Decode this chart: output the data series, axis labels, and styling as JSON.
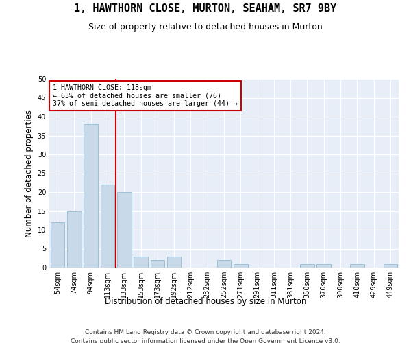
{
  "title": "1, HAWTHORN CLOSE, MURTON, SEAHAM, SR7 9BY",
  "subtitle": "Size of property relative to detached houses in Murton",
  "xlabel": "Distribution of detached houses by size in Murton",
  "ylabel": "Number of detached properties",
  "categories": [
    "54sqm",
    "74sqm",
    "94sqm",
    "113sqm",
    "133sqm",
    "153sqm",
    "173sqm",
    "192sqm",
    "212sqm",
    "232sqm",
    "252sqm",
    "271sqm",
    "291sqm",
    "311sqm",
    "331sqm",
    "350sqm",
    "370sqm",
    "390sqm",
    "410sqm",
    "429sqm",
    "449sqm"
  ],
  "values": [
    12,
    15,
    38,
    22,
    20,
    3,
    2,
    3,
    0,
    0,
    2,
    1,
    0,
    0,
    0,
    1,
    1,
    0,
    1,
    0,
    1
  ],
  "bar_color": "#c8daea",
  "bar_edgecolor": "#92bcd4",
  "property_label": "1 HAWTHORN CLOSE: 118sqm",
  "annotation_line1": "← 63% of detached houses are smaller (76)",
  "annotation_line2": "37% of semi-detached houses are larger (44) →",
  "vline_color": "#cc0000",
  "vline_position": 3.5,
  "annotation_box_facecolor": "#ffffff",
  "annotation_box_edgecolor": "#cc0000",
  "ylim": [
    0,
    50
  ],
  "yticks": [
    0,
    5,
    10,
    15,
    20,
    25,
    30,
    35,
    40,
    45,
    50
  ],
  "footer_line1": "Contains HM Land Registry data © Crown copyright and database right 2024.",
  "footer_line2": "Contains public sector information licensed under the Open Government Licence v3.0.",
  "bg_color": "#ffffff",
  "plot_bg_color": "#e8eef8",
  "grid_color": "#ffffff",
  "title_fontsize": 11,
  "subtitle_fontsize": 9,
  "tick_fontsize": 7,
  "ylabel_fontsize": 8.5,
  "xlabel_fontsize": 8.5,
  "footer_fontsize": 6.5
}
